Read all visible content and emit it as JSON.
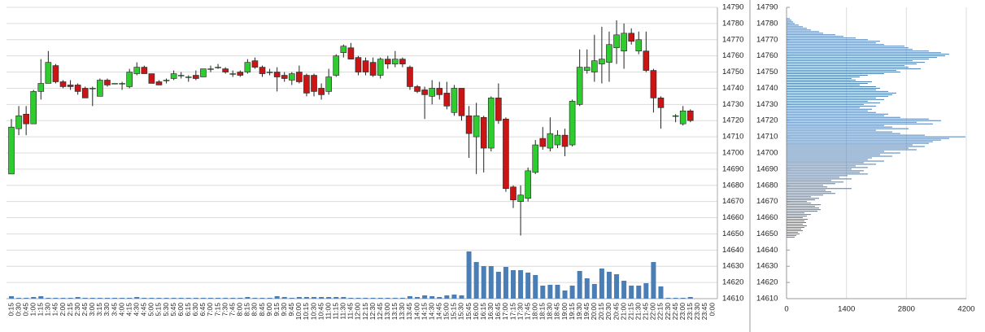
{
  "chart_data": [
    {
      "type": "candlestick",
      "categories": [
        "0:15",
        "0:30",
        "0:45",
        "1:00",
        "1:15",
        "1:30",
        "1:45",
        "2:00",
        "2:15",
        "2:30",
        "2:45",
        "3:00",
        "3:15",
        "3:30",
        "3:45",
        "4:00",
        "4:15",
        "4:30",
        "4:45",
        "5:00",
        "5:15",
        "5:30",
        "5:45",
        "6:00",
        "6:15",
        "6:30",
        "6:45",
        "7:00",
        "7:15",
        "7:30",
        "7:45",
        "8:00",
        "8:15",
        "8:30",
        "8:45",
        "9:00",
        "9:15",
        "9:30",
        "9:45",
        "10:00",
        "10:15",
        "10:30",
        "10:45",
        "11:00",
        "11:15",
        "11:30",
        "11:45",
        "12:00",
        "12:15",
        "12:30",
        "12:45",
        "13:00",
        "13:15",
        "13:30",
        "13:45",
        "14:00",
        "14:15",
        "14:30",
        "14:45",
        "15:00",
        "15:15",
        "15:30",
        "15:45",
        "16:00",
        "16:15",
        "16:30",
        "16:45",
        "17:00",
        "17:15",
        "17:30",
        "17:45",
        "18:00",
        "18:15",
        "18:30",
        "18:45",
        "19:00",
        "19:15",
        "19:30",
        "19:45",
        "20:00",
        "20:15",
        "20:30",
        "20:45",
        "21:00",
        "21:15",
        "21:30",
        "21:45",
        "22:00",
        "22:15",
        "22:30",
        "22:45",
        "23:00",
        "23:15",
        "23:30",
        "23:45",
        "0:00"
      ],
      "open": [
        14687,
        14715,
        14724,
        14718,
        14738,
        14743,
        14754,
        14744,
        14742,
        14742,
        14740,
        14740,
        14735,
        14745,
        14743,
        14743,
        14741,
        14749,
        14753,
        14749,
        14744,
        14745,
        14746,
        14748,
        14747,
        14748,
        14747,
        14752,
        14753,
        14752,
        14749,
        14750,
        14750,
        14757,
        14753,
        14750,
        14750,
        14748,
        14745,
        14750,
        14748,
        14748,
        14740,
        14738,
        14748,
        14762,
        14765,
        14759,
        14757,
        14756,
        14748,
        14758,
        14755,
        14758,
        14753,
        14741,
        14739,
        14735,
        14740,
        14737,
        14725,
        14740,
        14723,
        14710,
        14722,
        14703,
        14734,
        14721,
        14679,
        14670,
        14672,
        14688,
        14709,
        14703,
        14705,
        14711,
        14705,
        14730,
        14751,
        14750,
        14755,
        14756,
        14765,
        14763,
        14774,
        14763,
        14763,
        14751,
        14734,
        null,
        14723,
        14718,
        14726,
        null,
        null,
        null
      ],
      "high": [
        14721,
        14729,
        14729,
        14739,
        14758,
        14763,
        14755,
        14745,
        14745,
        14743,
        14741,
        14741,
        14746,
        14746,
        14743,
        14744,
        14752,
        14756,
        14754,
        14749,
        14745,
        14746,
        14751,
        14750,
        14748,
        14751,
        14752,
        14754,
        14755,
        14753,
        14751,
        14751,
        14758,
        14759,
        14754,
        14752,
        14753,
        14750,
        14750,
        14754,
        14749,
        14749,
        14743,
        14752,
        14761,
        14767,
        14768,
        14760,
        14759,
        14759,
        14759,
        14760,
        14763,
        14759,
        14754,
        14742,
        14741,
        14745,
        14744,
        14744,
        14742,
        14740,
        14729,
        14731,
        14723,
        14735,
        14743,
        14722,
        14680,
        14680,
        14691,
        14708,
        14716,
        14722,
        14714,
        14715,
        14733,
        14764,
        14764,
        14773,
        14778,
        14775,
        14782,
        14780,
        14777,
        14775,
        14775,
        14752,
        14735,
        null,
        14724,
        14729,
        14727,
        null,
        null,
        null
      ],
      "low": [
        14687,
        14711,
        14711,
        14718,
        14733,
        14743,
        14743,
        14740,
        14739,
        14736,
        14734,
        14729,
        14735,
        14741,
        14743,
        14739,
        14740,
        14748,
        14749,
        14743,
        14742,
        14743,
        14745,
        14746,
        14744,
        14745,
        14747,
        14750,
        14752,
        14749,
        14747,
        14747,
        14749,
        14752,
        14747,
        14748,
        14738,
        14744,
        14742,
        14743,
        14735,
        14735,
        14733,
        14736,
        14747,
        14759,
        14758,
        14748,
        14748,
        14747,
        14746,
        14752,
        14753,
        14753,
        14739,
        14737,
        14721,
        14730,
        14733,
        14727,
        14723,
        14720,
        14697,
        14687,
        14688,
        14701,
        14718,
        14676,
        14666,
        14649,
        14670,
        14687,
        14702,
        14701,
        14703,
        14698,
        14704,
        14729,
        14749,
        14744,
        14743,
        14744,
        14755,
        14752,
        14767,
        14761,
        14750,
        14725,
        14715,
        null,
        14719,
        14717,
        14719,
        null,
        null,
        null
      ],
      "close": [
        14716,
        14723,
        14718,
        14738,
        14743,
        14756,
        14744,
        14741,
        14741,
        14738,
        14734,
        14740,
        14745,
        14742,
        14743,
        14743,
        14750,
        14753,
        14749,
        14743,
        14742,
        14745,
        14749,
        14748,
        14747,
        14746,
        14752,
        14752,
        14753,
        14750,
        14749,
        14748,
        14756,
        14753,
        14749,
        14750,
        14747,
        14746,
        14749,
        14744,
        14737,
        14738,
        14736,
        14747,
        14760,
        14766,
        14758,
        14750,
        14750,
        14748,
        14758,
        14755,
        14758,
        14755,
        14741,
        14738,
        14736,
        14740,
        14736,
        14729,
        14740,
        14723,
        14712,
        14723,
        14703,
        14734,
        14720,
        14678,
        14671,
        14674,
        14689,
        14705,
        14704,
        14712,
        14711,
        14704,
        14732,
        14753,
        14753,
        14757,
        14758,
        14767,
        14773,
        14774,
        14769,
        14770,
        14751,
        14734,
        14728,
        null,
        14723,
        14726,
        14720,
        null,
        null,
        null
      ],
      "volume": [
        3,
        1,
        1,
        2,
        3,
        1,
        1,
        1,
        1,
        2,
        1,
        1,
        1,
        1,
        1,
        1,
        1,
        2,
        1,
        1,
        1,
        1,
        1,
        1,
        1,
        1,
        1,
        1,
        1,
        1,
        1,
        1,
        2,
        1,
        1,
        1,
        3,
        2,
        1,
        2,
        2,
        2,
        2,
        2,
        2,
        2,
        1,
        1,
        1,
        1,
        1,
        1,
        1,
        1,
        3,
        2,
        4,
        3,
        2,
        4,
        5,
        4,
        58,
        45,
        40,
        40,
        33,
        39,
        35,
        35,
        32,
        29,
        16,
        17,
        17,
        10,
        16,
        34,
        25,
        18,
        37,
        33,
        30,
        22,
        16,
        16,
        19,
        45,
        15,
        1,
        1,
        1,
        2,
        null,
        null,
        null
      ],
      "up_color": "#2ecc2e",
      "down_color": "#cc1414",
      "volume_color": "#4a7eb5",
      "ylim": [
        14610,
        14790
      ],
      "yticks": [
        14610,
        14620,
        14630,
        14640,
        14650,
        14660,
        14670,
        14680,
        14690,
        14700,
        14710,
        14720,
        14730,
        14740,
        14750,
        14760,
        14770,
        14780,
        14790
      ],
      "grid": true
    },
    {
      "type": "profile",
      "y": [
        14648,
        14649,
        14650,
        14651,
        14652,
        14653,
        14654,
        14655,
        14656,
        14657,
        14658,
        14659,
        14660,
        14661,
        14662,
        14663,
        14664,
        14665,
        14666,
        14667,
        14668,
        14669,
        14670,
        14671,
        14672,
        14673,
        14674,
        14675,
        14676,
        14677,
        14678,
        14679,
        14680,
        14681,
        14682,
        14683,
        14684,
        14685,
        14686,
        14687,
        14688,
        14689,
        14690,
        14691,
        14692,
        14693,
        14694,
        14695,
        14696,
        14697,
        14698,
        14699,
        14700,
        14701,
        14702,
        14703,
        14704,
        14705,
        14706,
        14707,
        14708,
        14709,
        14710,
        14711,
        14712,
        14713,
        14714,
        14715,
        14716,
        14717,
        14718,
        14719,
        14720,
        14721,
        14722,
        14723,
        14724,
        14725,
        14726,
        14727,
        14728,
        14729,
        14730,
        14731,
        14732,
        14733,
        14734,
        14735,
        14736,
        14737,
        14738,
        14739,
        14740,
        14741,
        14742,
        14743,
        14744,
        14745,
        14746,
        14747,
        14748,
        14749,
        14750,
        14751,
        14752,
        14753,
        14754,
        14755,
        14756,
        14757,
        14758,
        14759,
        14760,
        14761,
        14762,
        14763,
        14764,
        14765,
        14766,
        14767,
        14768,
        14769,
        14770,
        14771,
        14772,
        14773,
        14774,
        14775,
        14776,
        14777,
        14778,
        14779,
        14780,
        14781,
        14782,
        14783
      ],
      "values": [
        190,
        228,
        304,
        266,
        380,
        342,
        418,
        475,
        380,
        456,
        418,
        494,
        380,
        475,
        570,
        418,
        722,
        798,
        760,
        665,
        798,
        570,
        475,
        665,
        760,
        570,
        855,
        1140,
        1045,
        912,
        1520,
        950,
        855,
        1140,
        1330,
        1045,
        1520,
        1235,
        1425,
        1900,
        1710,
        1805,
        1520,
        1900,
        1615,
        2090,
        1805,
        2280,
        1900,
        1995,
        2470,
        2185,
        2660,
        2280,
        3040,
        2850,
        3230,
        2945,
        3325,
        3420,
        3610,
        3800,
        4180,
        3230,
        2660,
        2470,
        2090,
        2850,
        2470,
        2280,
        3420,
        3040,
        3610,
        3325,
        2660,
        2280,
        2375,
        2090,
        1900,
        1995,
        1710,
        2090,
        1805,
        2185,
        1900,
        2280,
        2090,
        2375,
        2470,
        2565,
        2375,
        2090,
        2185,
        2090,
        1710,
        1900,
        1995,
        1615,
        1520,
        1710,
        1900,
        2280,
        2660,
        2565,
        3135,
        2850,
        2755,
        3040,
        3230,
        2945,
        3325,
        3515,
        3705,
        3800,
        3610,
        3325,
        2945,
        2850,
        2755,
        2280,
        2090,
        2185,
        1900,
        1615,
        1330,
        1140,
        855,
        760,
        570,
        475,
        380,
        285,
        190,
        152,
        114,
        76
      ],
      "color": "#4a7eb5",
      "xlim": [
        0,
        4200
      ],
      "xticks": [
        0,
        1400,
        2800,
        4200
      ],
      "ylim": [
        14610,
        14790
      ],
      "yticks": [
        14610,
        14620,
        14630,
        14640,
        14650,
        14660,
        14670,
        14680,
        14690,
        14700,
        14710,
        14720,
        14730,
        14740,
        14750,
        14760,
        14770,
        14780,
        14790
      ],
      "grid": true
    }
  ]
}
